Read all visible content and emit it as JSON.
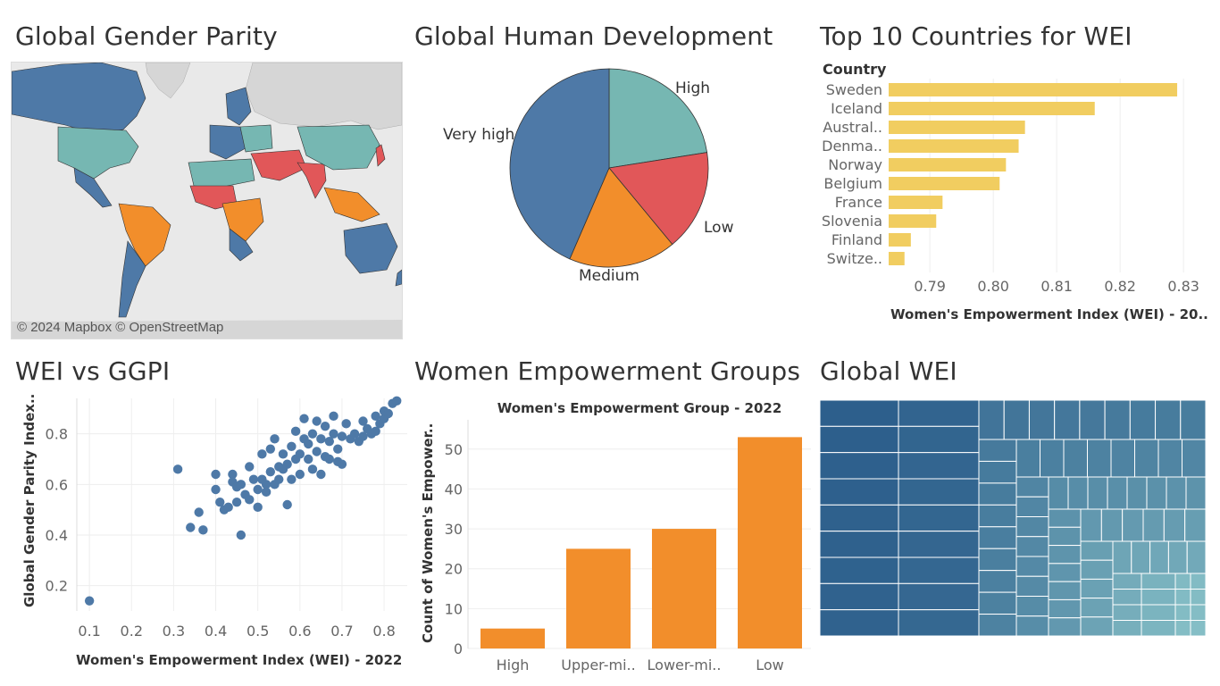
{
  "titles": {
    "map": "Global Gender Parity",
    "pie": "Global Human Development",
    "top10": "Top 10 Countries for WEI",
    "scatter": "WEI vs GGPI",
    "groups": "Women Empowerment Groups",
    "treemap": "Global WEI"
  },
  "map": {
    "attribution": "© 2024 Mapbox © OpenStreetMap",
    "colors": {
      "ocean": "#e9e9e9",
      "land_nodata": "#d6d6d6",
      "high": "#4e79a7",
      "upper": "#76b7b2",
      "lower": "#f28e2b",
      "low": "#e15759"
    }
  },
  "chart_data": [
    {
      "id": "pie",
      "type": "pie",
      "title": "Global Human Development",
      "slices": [
        {
          "label": "High",
          "value": 22.5,
          "color": "#76b7b2"
        },
        {
          "label": "Low",
          "value": 16.5,
          "color": "#e15759"
        },
        {
          "label": "Medium",
          "value": 17.5,
          "color": "#f28e2b"
        },
        {
          "label": "Very high",
          "value": 43.5,
          "color": "#4e79a7"
        }
      ]
    },
    {
      "id": "top10",
      "type": "bar",
      "orientation": "horizontal",
      "title": "Top 10 Countries for WEI",
      "category_header": "Country",
      "categories": [
        "Sweden",
        "Iceland",
        "Austral..",
        "Denma..",
        "Norway",
        "Belgium",
        "France",
        "Slovenia",
        "Finland",
        "Switze.."
      ],
      "values": [
        0.829,
        0.816,
        0.805,
        0.804,
        0.802,
        0.801,
        0.792,
        0.791,
        0.787,
        0.786
      ],
      "xlabel": "Women's Empowerment Index (WEI) - 20..",
      "xlim": [
        0.7835,
        0.8335
      ],
      "xticks": [
        "0.79",
        "0.80",
        "0.81",
        "0.82",
        "0.83"
      ],
      "color": "#f1cd60"
    },
    {
      "id": "scatter",
      "type": "scatter",
      "title": "WEI vs GGPI",
      "xlabel": "Women's Empowerment Index (WEI) - 2022",
      "ylabel": "Global Gender Parity Index..",
      "xlim": [
        0.07,
        0.855
      ],
      "ylim": [
        0.1,
        0.94
      ],
      "xticks": [
        "0.1",
        "0.2",
        "0.3",
        "0.4",
        "0.5",
        "0.6",
        "0.7",
        "0.8"
      ],
      "yticks": [
        "0.2",
        "0.4",
        "0.6",
        "0.8"
      ],
      "color": "#4e79a7",
      "points": [
        [
          0.1,
          0.14
        ],
        [
          0.31,
          0.66
        ],
        [
          0.34,
          0.43
        ],
        [
          0.36,
          0.49
        ],
        [
          0.37,
          0.42
        ],
        [
          0.4,
          0.64
        ],
        [
          0.4,
          0.58
        ],
        [
          0.41,
          0.53
        ],
        [
          0.42,
          0.5
        ],
        [
          0.43,
          0.51
        ],
        [
          0.44,
          0.61
        ],
        [
          0.44,
          0.64
        ],
        [
          0.45,
          0.59
        ],
        [
          0.45,
          0.53
        ],
        [
          0.46,
          0.4
        ],
        [
          0.46,
          0.6
        ],
        [
          0.47,
          0.56
        ],
        [
          0.48,
          0.67
        ],
        [
          0.48,
          0.54
        ],
        [
          0.49,
          0.62
        ],
        [
          0.5,
          0.51
        ],
        [
          0.5,
          0.58
        ],
        [
          0.51,
          0.62
        ],
        [
          0.51,
          0.72
        ],
        [
          0.52,
          0.57
        ],
        [
          0.52,
          0.6
        ],
        [
          0.53,
          0.65
        ],
        [
          0.53,
          0.74
        ],
        [
          0.54,
          0.6
        ],
        [
          0.54,
          0.78
        ],
        [
          0.55,
          0.62
        ],
        [
          0.55,
          0.67
        ],
        [
          0.56,
          0.66
        ],
        [
          0.56,
          0.72
        ],
        [
          0.57,
          0.52
        ],
        [
          0.57,
          0.68
        ],
        [
          0.58,
          0.75
        ],
        [
          0.58,
          0.62
        ],
        [
          0.59,
          0.7
        ],
        [
          0.59,
          0.81
        ],
        [
          0.6,
          0.64
        ],
        [
          0.6,
          0.72
        ],
        [
          0.61,
          0.78
        ],
        [
          0.61,
          0.86
        ],
        [
          0.62,
          0.7
        ],
        [
          0.62,
          0.76
        ],
        [
          0.63,
          0.66
        ],
        [
          0.63,
          0.8
        ],
        [
          0.64,
          0.73
        ],
        [
          0.64,
          0.85
        ],
        [
          0.65,
          0.64
        ],
        [
          0.65,
          0.78
        ],
        [
          0.66,
          0.71
        ],
        [
          0.66,
          0.83
        ],
        [
          0.67,
          0.77
        ],
        [
          0.67,
          0.7
        ],
        [
          0.68,
          0.8
        ],
        [
          0.68,
          0.87
        ],
        [
          0.69,
          0.74
        ],
        [
          0.69,
          0.69
        ],
        [
          0.7,
          0.68
        ],
        [
          0.7,
          0.79
        ],
        [
          0.71,
          0.84
        ],
        [
          0.72,
          0.78
        ],
        [
          0.73,
          0.8
        ],
        [
          0.74,
          0.77
        ],
        [
          0.75,
          0.79
        ],
        [
          0.75,
          0.85
        ],
        [
          0.76,
          0.82
        ],
        [
          0.77,
          0.8
        ],
        [
          0.78,
          0.81
        ],
        [
          0.78,
          0.87
        ],
        [
          0.79,
          0.84
        ],
        [
          0.8,
          0.86
        ],
        [
          0.8,
          0.89
        ],
        [
          0.81,
          0.88
        ],
        [
          0.82,
          0.92
        ],
        [
          0.83,
          0.93
        ]
      ]
    },
    {
      "id": "groups",
      "type": "bar",
      "title": "Women's Empowerment Group - 2022",
      "categories": [
        "High",
        "Upper-mi..",
        "Lower-mi..",
        "Low"
      ],
      "values": [
        5,
        25,
        30,
        53
      ],
      "ylabel": "Count of Women's Empower..",
      "ylim": [
        0,
        56
      ],
      "yticks": [
        "0",
        "10",
        "20",
        "30",
        "40",
        "50"
      ],
      "color": "#f28e2b"
    },
    {
      "id": "treemap",
      "type": "heatmap",
      "title": "Global WEI",
      "color_range": [
        "#2d5f8c",
        "#8fc9cc"
      ]
    }
  ]
}
